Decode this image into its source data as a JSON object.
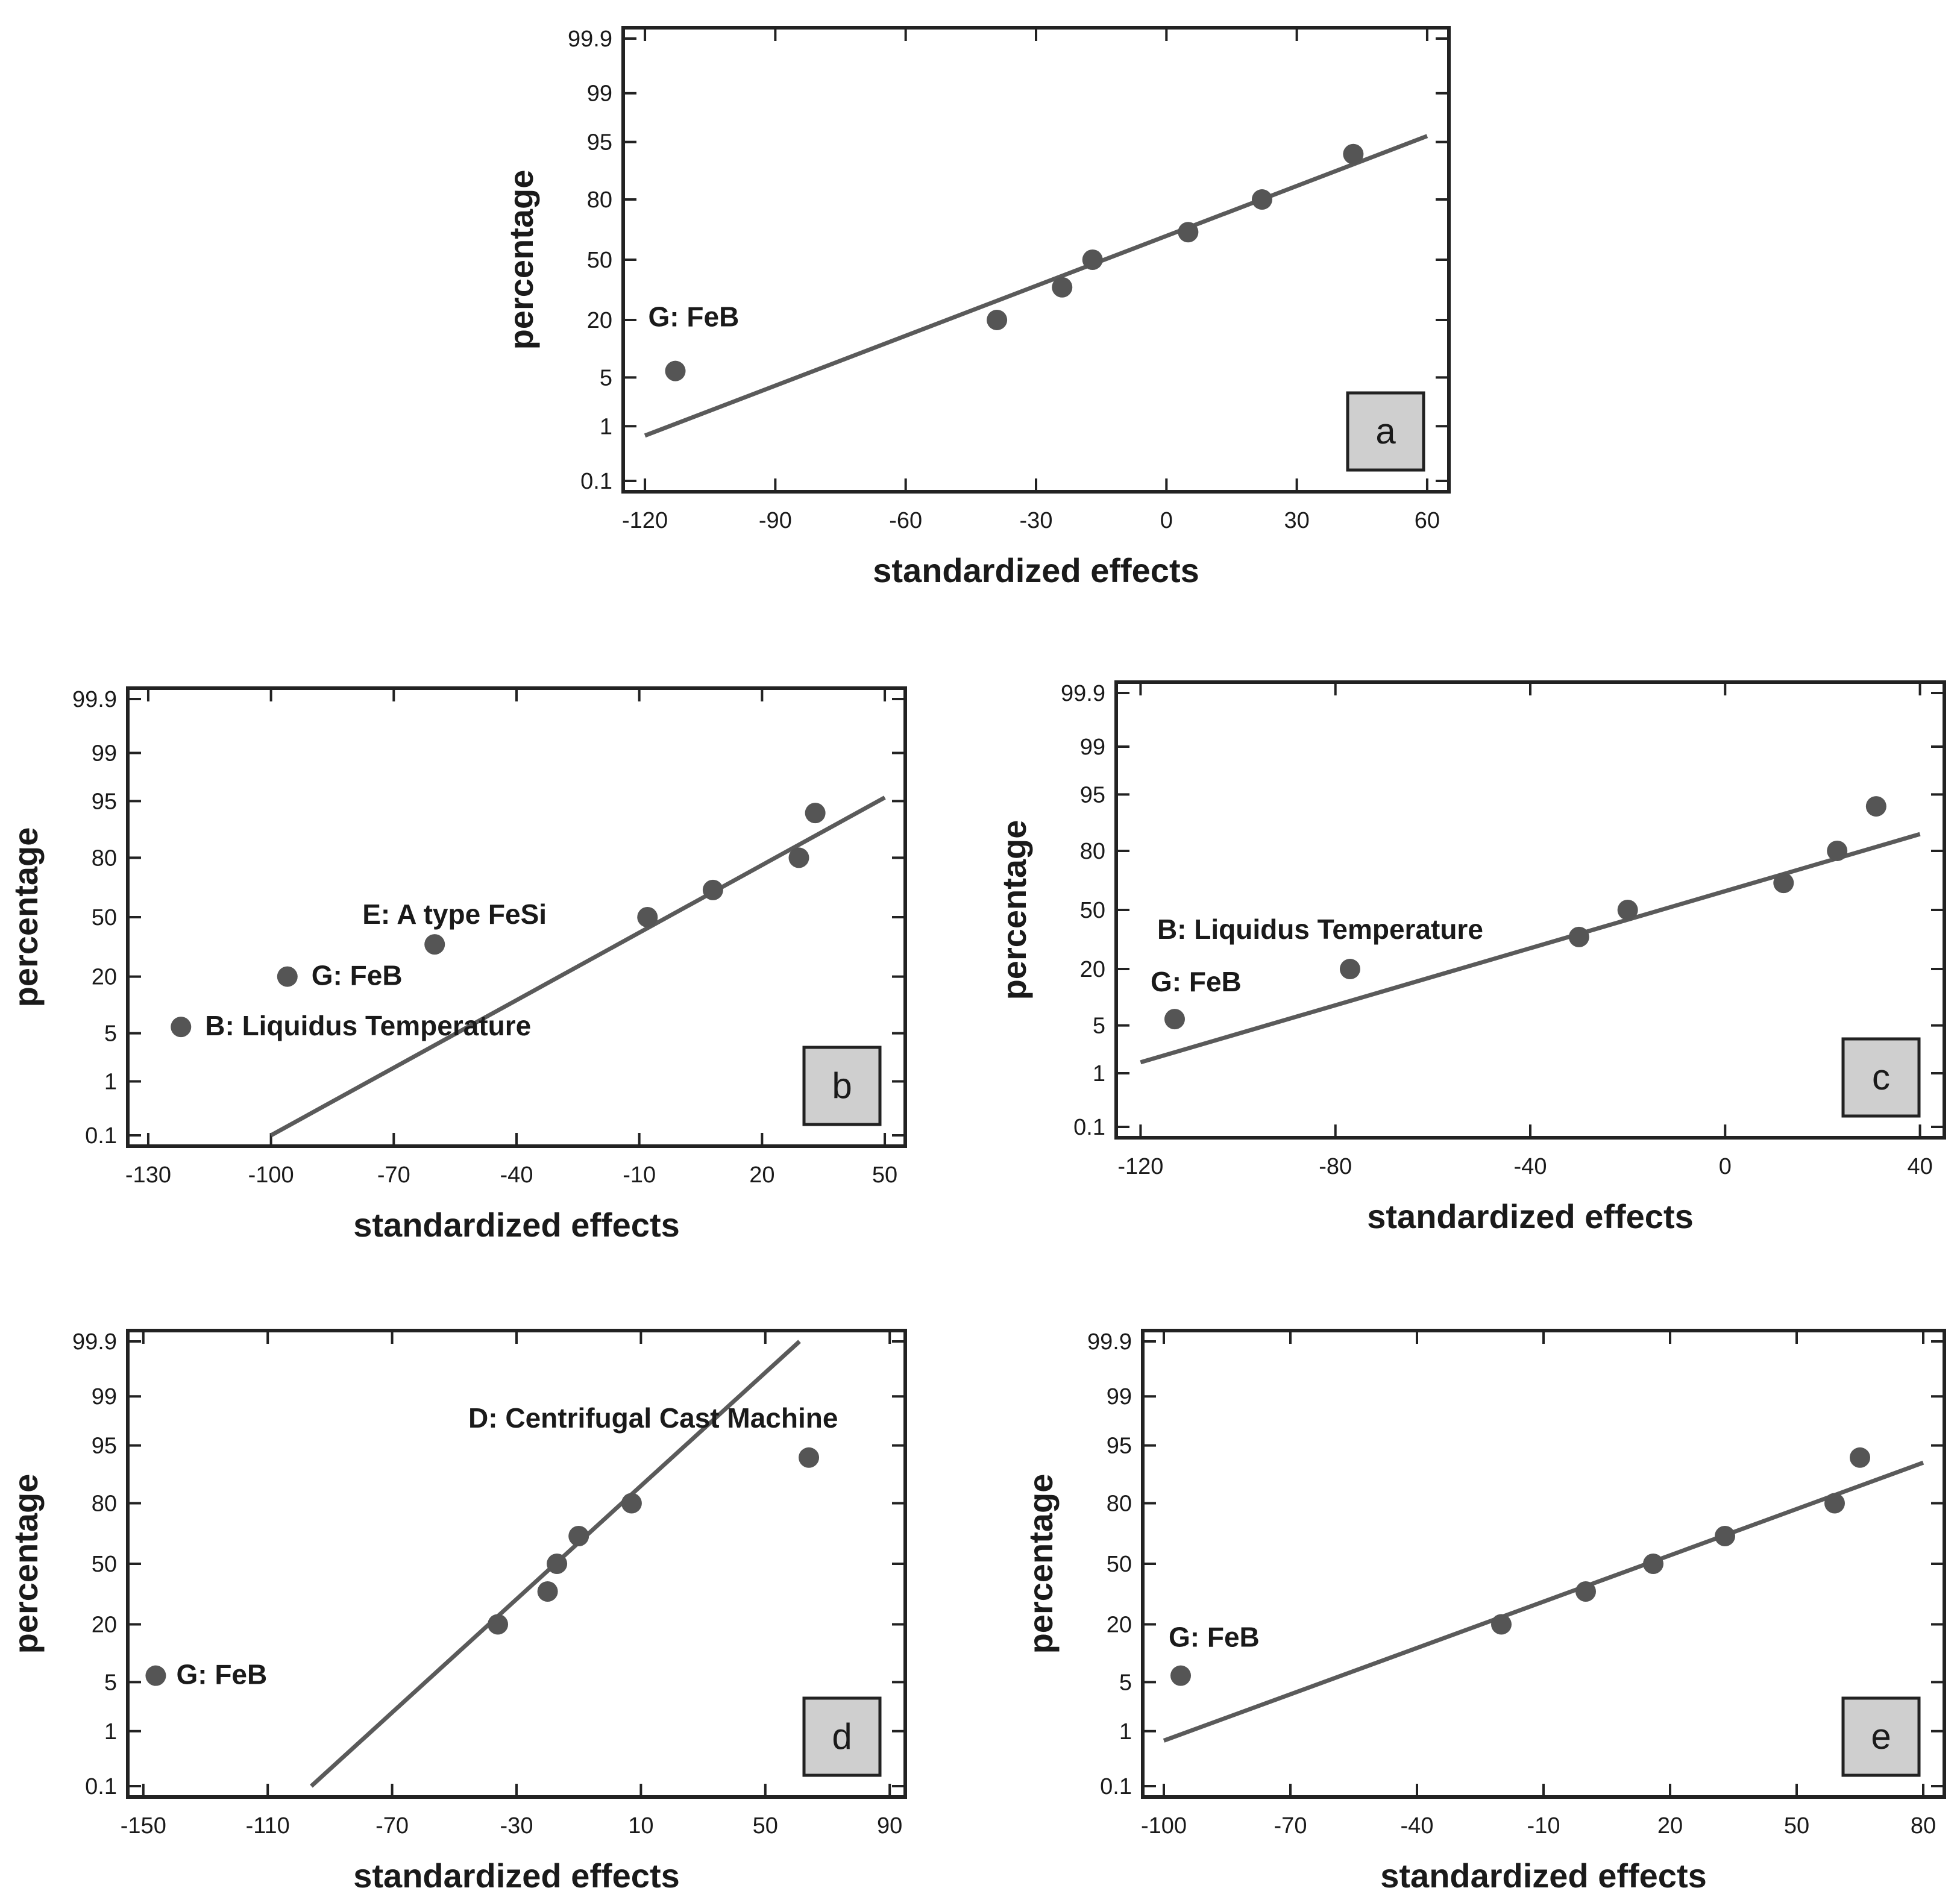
{
  "chart_data": [
    {
      "type": "scatter",
      "panel_label": "a",
      "xlabel": "standardized effects",
      "ylabel": "percentage",
      "xlim": [
        -125,
        65
      ],
      "xticks": [
        -120,
        -90,
        -60,
        -30,
        0,
        30,
        60
      ],
      "yticks": [
        "0.1",
        "1",
        "5",
        "20",
        "50",
        "80",
        "95",
        "99",
        "99.9"
      ],
      "points": [
        {
          "x": -113,
          "y": 6
        },
        {
          "x": -39,
          "y": 20
        },
        {
          "x": -24,
          "y": 35
        },
        {
          "x": -17,
          "y": 50
        },
        {
          "x": 5,
          "y": 65
        },
        {
          "x": 22,
          "y": 80
        },
        {
          "x": 43,
          "y": 93
        }
      ],
      "fit_line": {
        "x": [
          -120,
          60
        ],
        "y": [
          0.7,
          95.8
        ]
      },
      "annotations": [
        {
          "text": "G: FeB",
          "x": -113,
          "y": 6
        }
      ]
    },
    {
      "type": "scatter",
      "panel_label": "b",
      "xlabel": "standardized effects",
      "ylabel": "percentage",
      "xlim": [
        -135,
        55
      ],
      "xticks": [
        -130,
        -100,
        -70,
        -40,
        -10,
        20,
        50
      ],
      "yticks": [
        "0.1",
        "1",
        "5",
        "20",
        "50",
        "80",
        "95",
        "99",
        "99.9"
      ],
      "points": [
        {
          "x": -122,
          "y": 6
        },
        {
          "x": -96,
          "y": 20
        },
        {
          "x": -60,
          "y": 35
        },
        {
          "x": -8,
          "y": 50
        },
        {
          "x": 8,
          "y": 65
        },
        {
          "x": 29,
          "y": 80
        },
        {
          "x": 33,
          "y": 93
        }
      ],
      "fit_line": {
        "x": [
          -100,
          50
        ],
        "y": [
          0.1,
          95.5
        ]
      },
      "annotations": [
        {
          "text": "E: A type FeSi",
          "x": -60,
          "y": 35
        },
        {
          "text": "G: FeB",
          "x": -96,
          "y": 20
        },
        {
          "text": "B: Liquidus Temperature",
          "x": -122,
          "y": 6
        }
      ]
    },
    {
      "type": "scatter",
      "panel_label": "c",
      "xlabel": "standardized effects",
      "ylabel": "percentage",
      "xlim": [
        -125,
        45
      ],
      "xticks": [
        -120,
        -80,
        -40,
        0,
        40
      ],
      "yticks": [
        "0.1",
        "1",
        "5",
        "20",
        "50",
        "80",
        "95",
        "99",
        "99.9"
      ],
      "points": [
        {
          "x": -113,
          "y": 6
        },
        {
          "x": -77,
          "y": 20
        },
        {
          "x": -30,
          "y": 35
        },
        {
          "x": -20,
          "y": 50
        },
        {
          "x": 12,
          "y": 65
        },
        {
          "x": 23,
          "y": 80
        },
        {
          "x": 31,
          "y": 93
        }
      ],
      "fit_line": {
        "x": [
          -120,
          40
        ],
        "y": [
          1.5,
          86
        ]
      },
      "annotations": [
        {
          "text": "B: Liquidus Temperature",
          "x": -77,
          "y": 20
        },
        {
          "text": "G: FeB",
          "x": -113,
          "y": 6
        }
      ]
    },
    {
      "type": "scatter",
      "panel_label": "d",
      "xlabel": "standardized effects",
      "ylabel": "percentage",
      "xlim": [
        -155,
        95
      ],
      "xticks": [
        -150,
        -110,
        -70,
        -30,
        10,
        50,
        90
      ],
      "yticks": [
        "0.1",
        "1",
        "5",
        "20",
        "50",
        "80",
        "95",
        "99",
        "99.9"
      ],
      "points": [
        {
          "x": -146,
          "y": 6
        },
        {
          "x": -36,
          "y": 20
        },
        {
          "x": -20,
          "y": 35
        },
        {
          "x": -17,
          "y": 50
        },
        {
          "x": -10,
          "y": 65
        },
        {
          "x": 7,
          "y": 80
        },
        {
          "x": 64,
          "y": 93
        }
      ],
      "fit_line": {
        "x": [
          -96,
          61
        ],
        "y": [
          0.1,
          99.9
        ]
      },
      "annotations": [
        {
          "text": "D: Centrifugal Cast Machine",
          "x": 64,
          "y": 93
        },
        {
          "text": "G: FeB",
          "x": -146,
          "y": 6
        }
      ]
    },
    {
      "type": "scatter",
      "panel_label": "e",
      "xlabel": "standardized effects",
      "ylabel": "percentage",
      "xlim": [
        -105,
        85
      ],
      "xticks": [
        -100,
        -70,
        -40,
        -10,
        20,
        50,
        80
      ],
      "yticks": [
        "0.1",
        "1",
        "5",
        "20",
        "50",
        "80",
        "95",
        "99",
        "99.9"
      ],
      "points": [
        {
          "x": -96,
          "y": 6
        },
        {
          "x": -20,
          "y": 20
        },
        {
          "x": 0,
          "y": 35
        },
        {
          "x": 16,
          "y": 50
        },
        {
          "x": 33,
          "y": 65
        },
        {
          "x": 59,
          "y": 80
        },
        {
          "x": 65,
          "y": 93
        }
      ],
      "fit_line": {
        "x": [
          -100,
          80
        ],
        "y": [
          0.7,
          92
        ]
      },
      "annotations": [
        {
          "text": "G: FeB",
          "x": -96,
          "y": 6
        }
      ]
    }
  ]
}
